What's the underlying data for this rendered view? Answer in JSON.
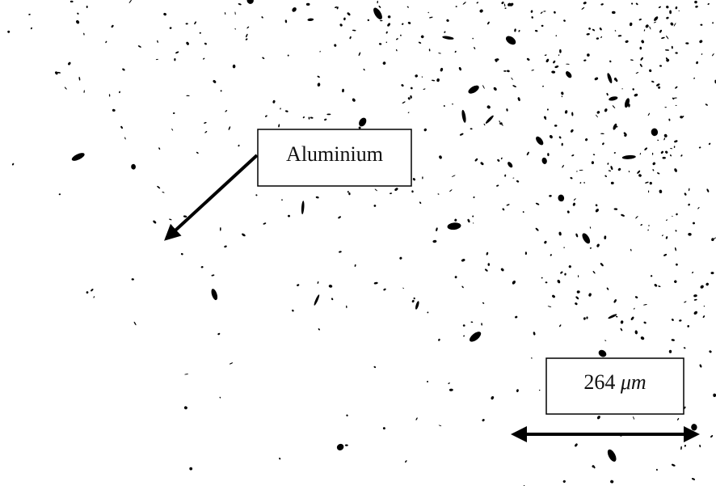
{
  "labels": {
    "material": "Aluminium"
  },
  "scale_bar": {
    "length": 264,
    "unit": "μm"
  }
}
